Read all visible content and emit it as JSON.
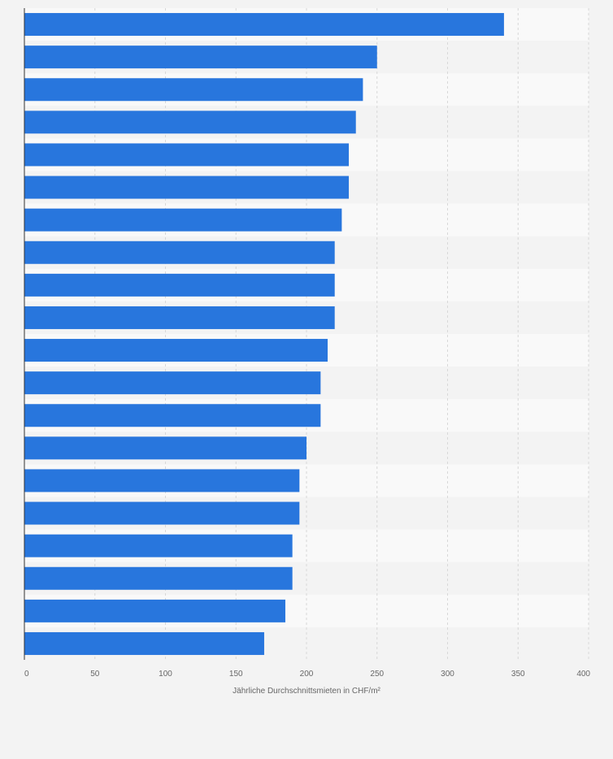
{
  "colors": {
    "page_background": "#f3f3f3",
    "band_light": "#f9f9f9",
    "band_dark": "#f3f3f3",
    "bar": "#2876dd",
    "gridline": "#d8d8d8",
    "axis_line": "#333333",
    "tick_text": "#666666"
  },
  "chart_data": {
    "type": "bar",
    "orientation": "horizontal",
    "categories": [
      "",
      "",
      "",
      "",
      "",
      "",
      "",
      "",
      "",
      "",
      "",
      "",
      "",
      "",
      "",
      "",
      "",
      "",
      "",
      ""
    ],
    "values": [
      340,
      250,
      240,
      235,
      230,
      230,
      225,
      220,
      220,
      220,
      215,
      210,
      210,
      200,
      195,
      195,
      190,
      190,
      185,
      170
    ],
    "title": "",
    "xlabel": "Jährliche Durchschnittsmieten in CHF/m²",
    "ylabel": "",
    "xlim": [
      0,
      400
    ],
    "xticks": [
      "0",
      "50",
      "100",
      "150",
      "200",
      "250",
      "300",
      "350",
      "400"
    ],
    "grid": "vertical dashed",
    "legend": "none"
  }
}
